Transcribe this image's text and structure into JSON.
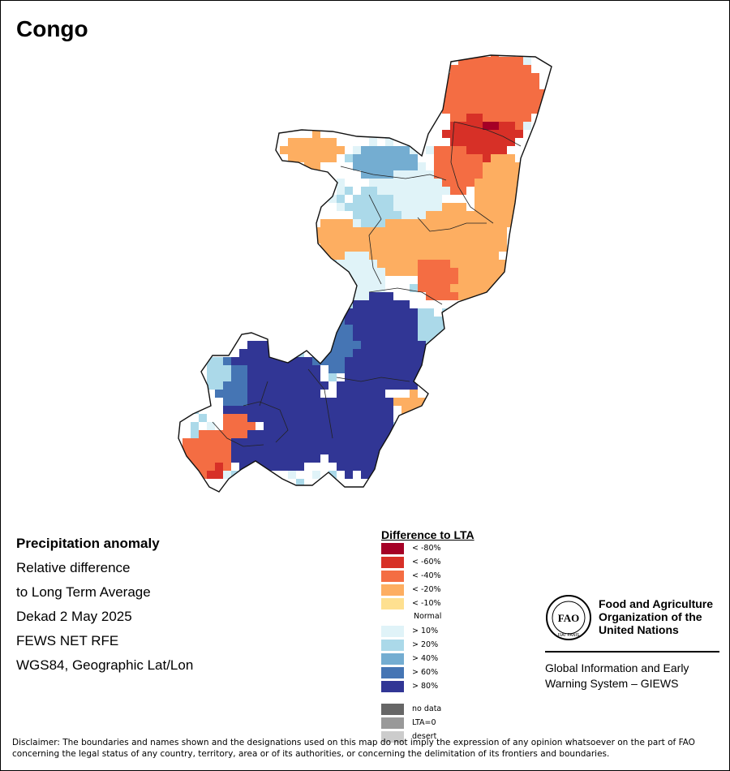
{
  "map_title": "Congo",
  "info": {
    "heading": "Precipitation anomaly",
    "line1": "Relative difference",
    "line2": "to Long Term Average",
    "line3": "Dekad 2 May 2025",
    "line4": "FEWS NET RFE",
    "line5": "WGS84, Geographic Lat/Lon"
  },
  "legend": {
    "title": "Difference to LTA",
    "normal_label": "Normal",
    "classes": [
      {
        "label": "< -80%",
        "color": "#a50026"
      },
      {
        "label": "< -60%",
        "color": "#d73027"
      },
      {
        "label": "< -40%",
        "color": "#f46d43"
      },
      {
        "label": "< -20%",
        "color": "#fdae61"
      },
      {
        "label": "< -10%",
        "color": "#fee090"
      },
      {
        "label": "> 10%",
        "color": "#e0f3f8"
      },
      {
        "label": "> 20%",
        "color": "#abd9e9"
      },
      {
        "label": "> 40%",
        "color": "#74add1"
      },
      {
        "label": "> 60%",
        "color": "#4575b4"
      },
      {
        "label": "> 80%",
        "color": "#313695"
      }
    ],
    "extra": [
      {
        "label": "no data",
        "color": "#666666"
      },
      {
        "label": "LTA=0",
        "color": "#999999"
      },
      {
        "label": "desert",
        "color": "#cccccc"
      }
    ]
  },
  "org": {
    "logo_text": "FAO",
    "logo_motto": "FIAT PANIS",
    "name_line1": "Food and Agriculture",
    "name_line2": "Organization of the",
    "name_line3": "United Nations",
    "system_line1": "Global Information and Early",
    "system_line2": "Warning System – GIEWS"
  },
  "disclaimer": "Disclaimer: The boundaries and names shown and the designations used on this map do not imply the expression of any opinion whatsoever on the part of FAO concerning the legal status of any country, territory, area or of its authorities, or concerning the delimitation of its frontiers and boundaries."
}
